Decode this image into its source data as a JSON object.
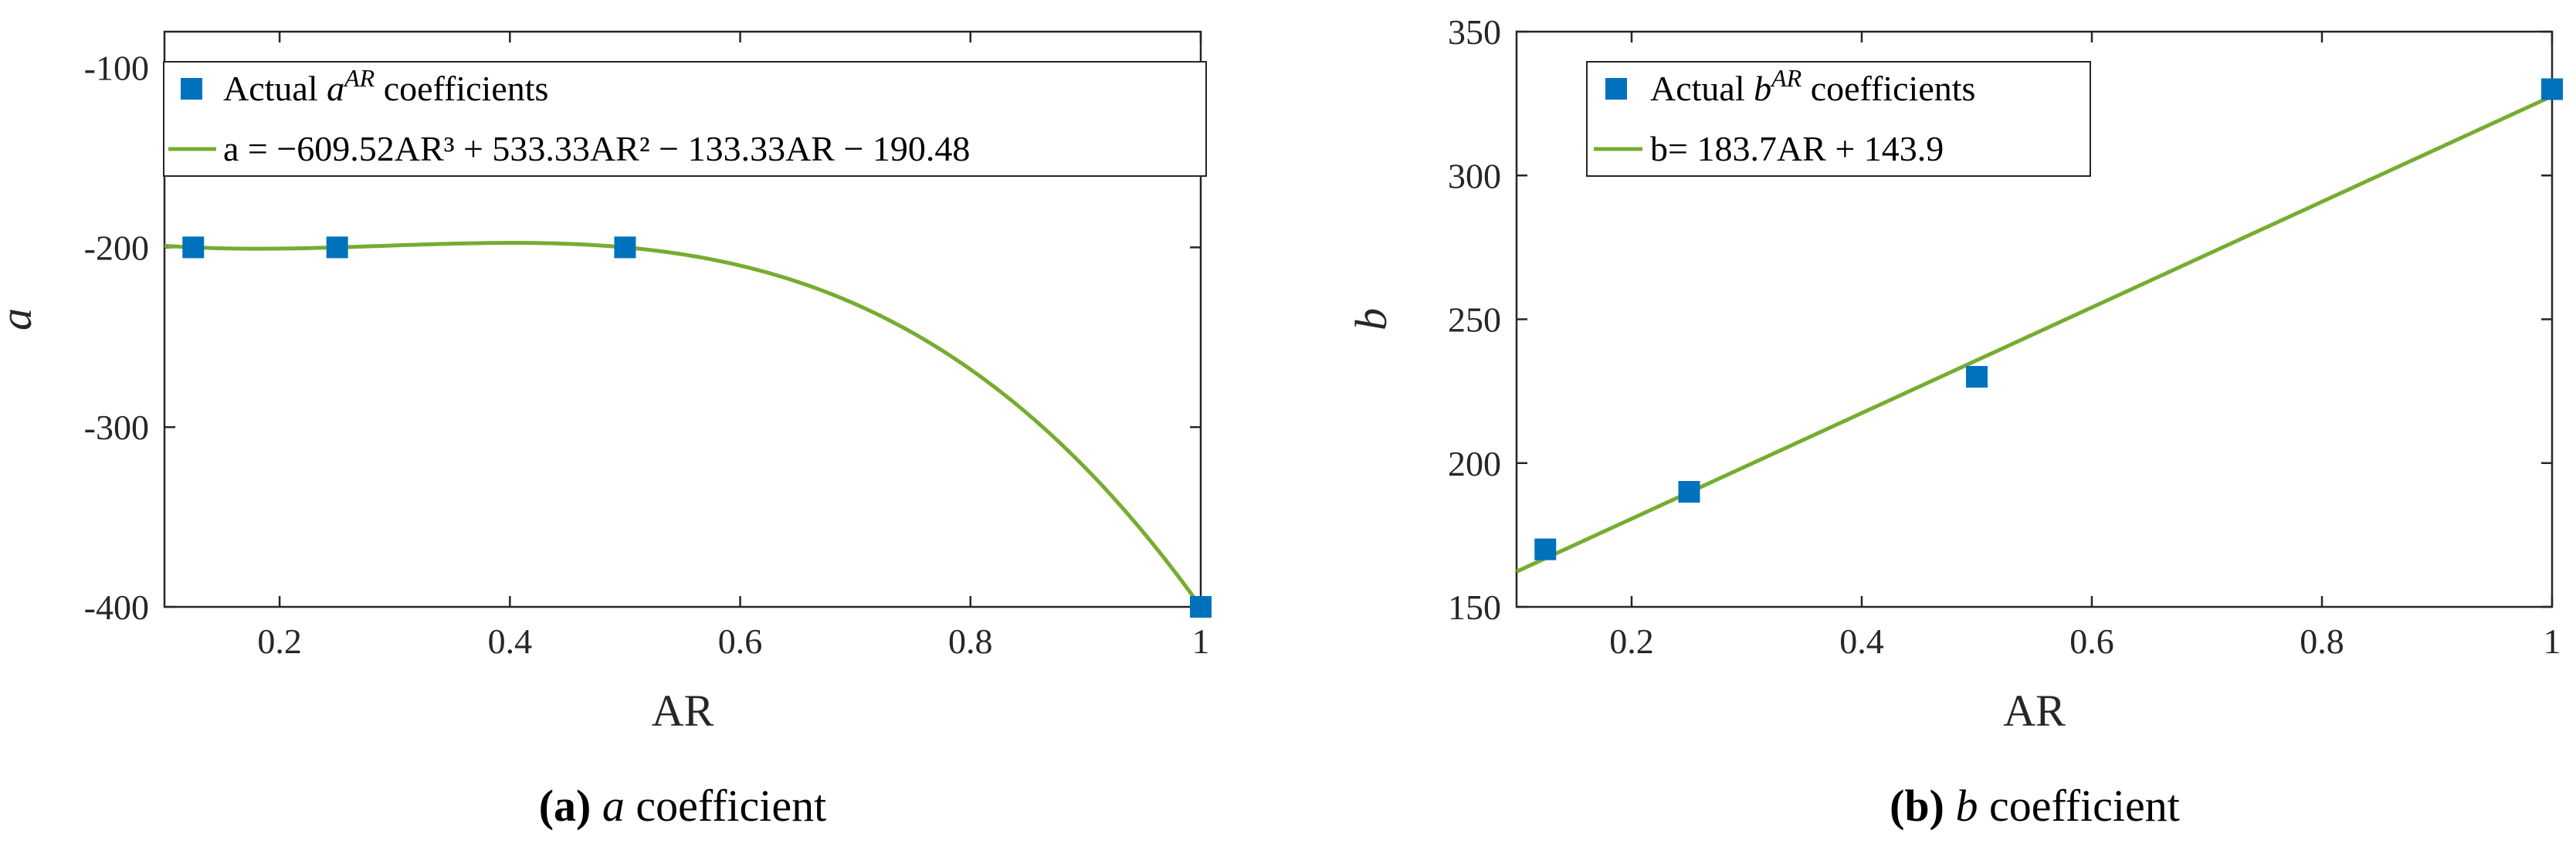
{
  "colors": {
    "marker": "#0072BD",
    "fit": "#77AC30",
    "axis": "#262626"
  },
  "chart_data": [
    {
      "type": "scatter",
      "panel_label": "(a)",
      "caption_var": "a",
      "caption_text": " coefficient",
      "xlabel": "AR",
      "ylabel": "a",
      "xlim": [
        0.1,
        1
      ],
      "ylim": [
        -400,
        -80
      ],
      "xticks": [
        "0.2",
        "0.4",
        "0.6",
        "0.8",
        "1"
      ],
      "xtick_values": [
        0.2,
        0.4,
        0.6,
        0.8,
        1
      ],
      "yticks": [
        "-100",
        "-200",
        "-300",
        "-400"
      ],
      "ytick_values": [
        -100,
        -200,
        -300,
        -400
      ],
      "grid": false,
      "legend_position": "top-right",
      "series": [
        {
          "name": "Actual a^AR coefficients",
          "kind": "markers",
          "x": [
            0.125,
            0.25,
            0.5,
            1.0
          ],
          "y": [
            -200,
            -200,
            -200,
            -400
          ]
        },
        {
          "name": "a = −609.52AR³ + 533.33AR² − 133.33AR − 190.48",
          "kind": "fit",
          "coefficients": [
            -609.52,
            533.33,
            -133.33,
            -190.48
          ]
        }
      ],
      "legend": {
        "marker_pre": "Actual ",
        "marker_var": "a",
        "marker_sup": "AR",
        "marker_post": " coefficients",
        "fit_text": "a = −609.52AR³ + 533.33AR² − 133.33AR − 190.48"
      }
    },
    {
      "type": "scatter",
      "panel_label": "(b)",
      "caption_var": "b",
      "caption_text": " coefficient",
      "xlabel": "AR",
      "ylabel": "b",
      "xlim": [
        0.1,
        1
      ],
      "ylim": [
        150,
        350
      ],
      "xticks": [
        "0.2",
        "0.4",
        "0.6",
        "0.8",
        "1"
      ],
      "xtick_values": [
        0.2,
        0.4,
        0.6,
        0.8,
        1
      ],
      "yticks": [
        "150",
        "200",
        "250",
        "300",
        "350"
      ],
      "ytick_values": [
        150,
        200,
        250,
        300,
        350
      ],
      "grid": false,
      "legend_position": "top-left",
      "series": [
        {
          "name": "Actual b^AR coefficients",
          "kind": "markers",
          "x": [
            0.125,
            0.25,
            0.5,
            1.0
          ],
          "y": [
            170,
            190,
            230,
            330
          ]
        },
        {
          "name": "b= 183.7AR + 143.9",
          "kind": "fit",
          "coefficients": [
            183.7,
            143.9
          ]
        }
      ],
      "legend": {
        "marker_pre": "Actual ",
        "marker_var": "b",
        "marker_sup": "AR",
        "marker_post": " coefficients",
        "fit_text": "b= 183.7AR + 143.9"
      }
    }
  ]
}
